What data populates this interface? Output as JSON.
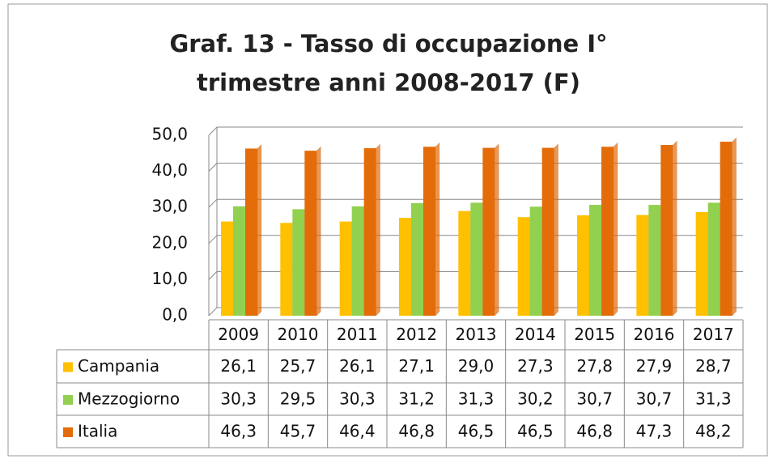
{
  "chart_data": {
    "type": "bar",
    "title": "Graf. 13 - Tasso di occupazione I° trimestre anni 2008-2017 (F)",
    "categories": [
      "2009",
      "2010",
      "2011",
      "2012",
      "2013",
      "2014",
      "2015",
      "2016",
      "2017"
    ],
    "series": [
      {
        "name": "Campania",
        "color": "#ffc000",
        "values": [
          26.1,
          25.7,
          26.1,
          27.1,
          29.0,
          27.3,
          27.8,
          27.9,
          28.7
        ],
        "value_labels": [
          "26,1",
          "25,7",
          "26,1",
          "27,1",
          "29,0",
          "27,3",
          "27,8",
          "27,9",
          "28,7"
        ]
      },
      {
        "name": "Mezzogiorno",
        "color": "#92d050",
        "values": [
          30.3,
          29.5,
          30.3,
          31.2,
          31.3,
          30.2,
          30.7,
          30.7,
          31.3
        ],
        "value_labels": [
          "30,3",
          "29,5",
          "30,3",
          "31,2",
          "31,3",
          "30,2",
          "30,7",
          "30,7",
          "31,3"
        ]
      },
      {
        "name": "Italia",
        "color": "#e36c09",
        "values": [
          46.3,
          45.7,
          46.4,
          46.8,
          46.5,
          46.5,
          46.8,
          47.3,
          48.2
        ],
        "value_labels": [
          "46,3",
          "45,7",
          "46,4",
          "46,8",
          "46,5",
          "46,5",
          "46,8",
          "47,3",
          "48,2"
        ]
      }
    ],
    "ylim": [
      0,
      50
    ],
    "yticks": [
      {
        "value": 0,
        "label": "0,0"
      },
      {
        "value": 10,
        "label": "10,0"
      },
      {
        "value": 20,
        "label": "20,0"
      },
      {
        "value": 30,
        "label": "30,0"
      },
      {
        "value": 40,
        "label": "40,0"
      },
      {
        "value": 50,
        "label": "50,0"
      }
    ],
    "grid": true
  }
}
